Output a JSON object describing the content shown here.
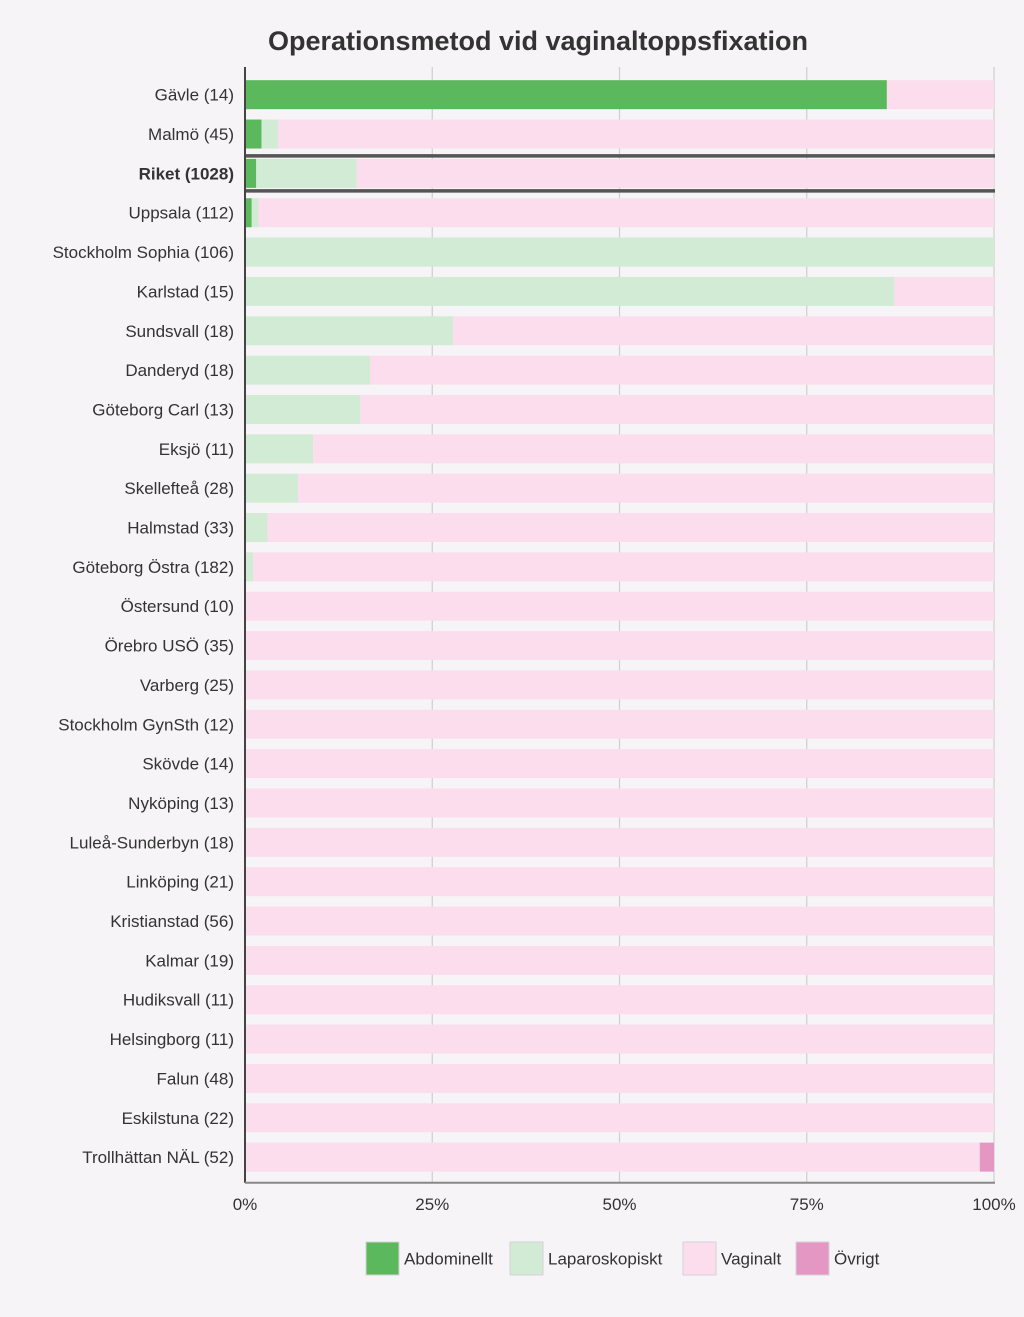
{
  "chart_data": {
    "type": "bar",
    "orientation": "horizontal",
    "stacked": true,
    "title": "Operationsmetod vid vaginaltoppsfixation",
    "xlabel": "",
    "ylabel": "",
    "xlim": [
      0,
      100
    ],
    "x_ticks": [
      "0%",
      "25%",
      "50%",
      "75%",
      "100%"
    ],
    "grid": true,
    "legend_position": "bottom",
    "highlight_category": "Riket (1028)",
    "categories": [
      "Gävle (14)",
      "Malmö (45)",
      "Riket (1028)",
      "Uppsala (112)",
      "Stockholm Sophia (106)",
      "Karlstad (15)",
      "Sundsvall (18)",
      "Danderyd (18)",
      "Göteborg Carl (13)",
      "Eksjö (11)",
      "Skellefteå (28)",
      "Halmstad (33)",
      "Göteborg Östra (182)",
      "Östersund (10)",
      "Örebro USÖ (35)",
      "Varberg (25)",
      "Stockholm GynSth (12)",
      "Skövde (14)",
      "Nyköping (13)",
      "Luleå-Sunderbyn (18)",
      "Linköping (21)",
      "Kristianstad (56)",
      "Kalmar (19)",
      "Hudiksvall (11)",
      "Helsingborg (11)",
      "Falun (48)",
      "Eskilstuna (22)",
      "Trollhättan NÄL (52)"
    ],
    "series": [
      {
        "name": "Abdominellt",
        "color": "#5cb85c",
        "values": [
          85.7,
          2.2,
          1.5,
          0.9,
          0,
          0,
          0,
          0,
          0,
          0,
          0,
          0,
          0,
          0,
          0,
          0,
          0,
          0,
          0,
          0,
          0,
          0,
          0,
          0,
          0,
          0,
          0,
          0
        ]
      },
      {
        "name": "Laparoskopiskt",
        "color": "#d2ebd5",
        "values": [
          0,
          2.2,
          13.4,
          0.9,
          100,
          86.7,
          27.8,
          16.7,
          15.4,
          9.1,
          7.1,
          3.0,
          1.1,
          0,
          0,
          0,
          0,
          0,
          0,
          0,
          0,
          0,
          0,
          0,
          0,
          0,
          0,
          0
        ]
      },
      {
        "name": "Vaginalt",
        "color": "#fbdded",
        "values": [
          14.3,
          95.6,
          85.1,
          98.2,
          0,
          13.3,
          72.2,
          83.3,
          84.6,
          90.9,
          92.9,
          97.0,
          98.9,
          100,
          100,
          100,
          100,
          100,
          100,
          100,
          100,
          100,
          100,
          100,
          100,
          100,
          100,
          98.1
        ]
      },
      {
        "name": "Övrigt",
        "color": "#e597c4",
        "values": [
          0,
          0,
          0,
          0,
          0,
          0,
          0,
          0,
          0,
          0,
          0,
          0,
          0,
          0,
          0,
          0,
          0,
          0,
          0,
          0,
          0,
          0,
          0,
          0,
          0,
          0,
          0,
          1.9
        ]
      }
    ]
  },
  "colors": {
    "background": "#f6f4f6",
    "grid": "#cfcfcf",
    "axis": "#444444",
    "highlight_border": "#555555",
    "text": "#333333"
  }
}
